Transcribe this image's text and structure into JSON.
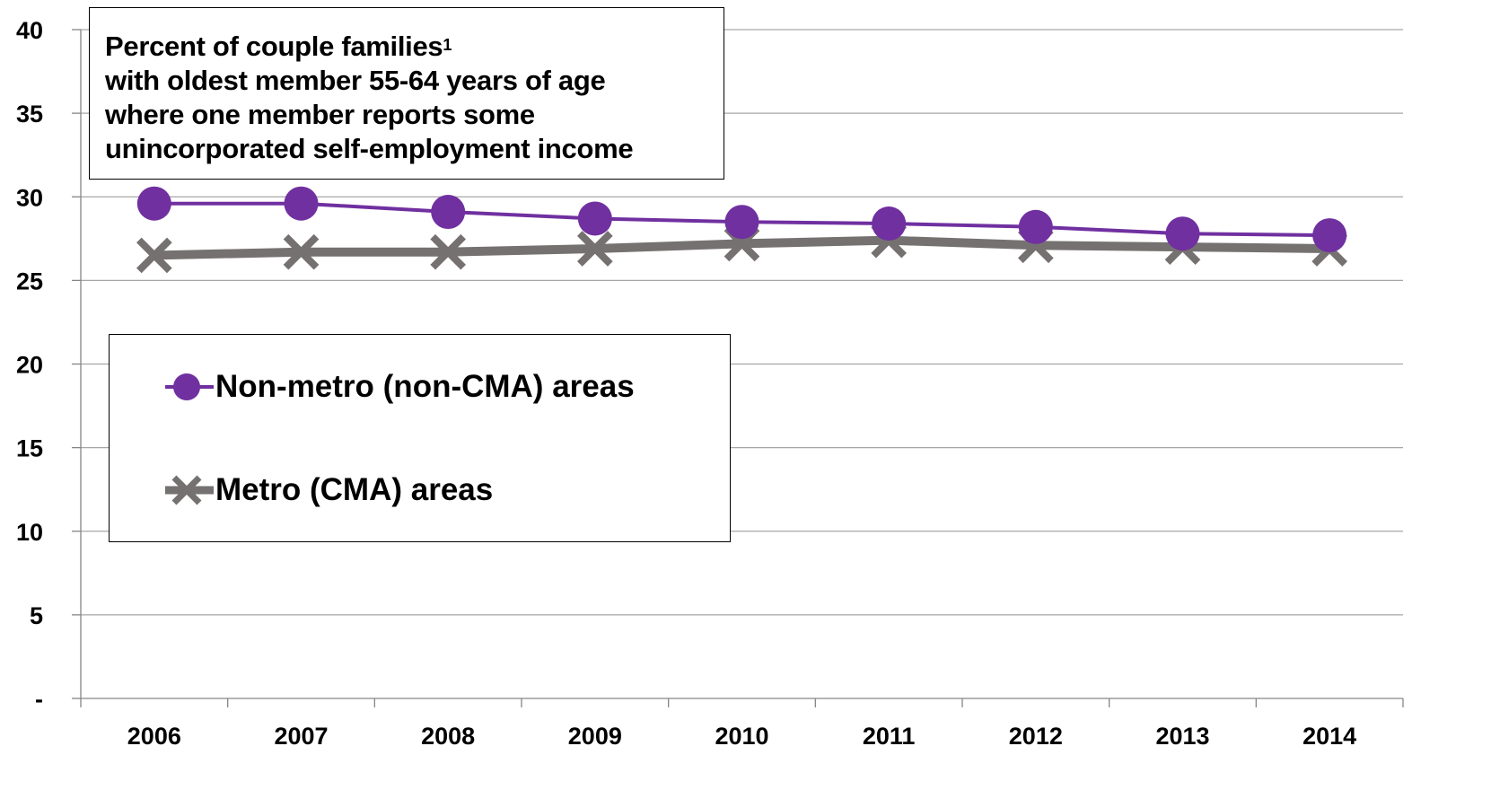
{
  "chart_data": {
    "type": "line",
    "title_lines": [
      "Percent of couple families",
      "with oldest member 55-64 years of age",
      "where one member reports some",
      "unincorporated self-employment income"
    ],
    "title_superscript": "1",
    "categories": [
      "2006",
      "2007",
      "2008",
      "2009",
      "2010",
      "2011",
      "2012",
      "2013",
      "2014"
    ],
    "y_tick_labels": [
      "-",
      "5",
      "10",
      "15",
      "20",
      "25",
      "30",
      "35",
      "40"
    ],
    "ylim": [
      0,
      40
    ],
    "grid": "horizontal",
    "legend_position": "left-middle",
    "series": [
      {
        "name": "Non-metro (non-CMA) areas",
        "marker": "circle",
        "color": "#7030a0",
        "values": [
          29.6,
          29.6,
          29.1,
          28.7,
          28.5,
          28.4,
          28.2,
          27.8,
          27.7
        ]
      },
      {
        "name": "Metro (CMA) areas",
        "marker": "x",
        "color": "#767171",
        "values": [
          26.5,
          26.7,
          26.7,
          26.9,
          27.2,
          27.4,
          27.1,
          27.0,
          26.9
        ]
      }
    ]
  }
}
